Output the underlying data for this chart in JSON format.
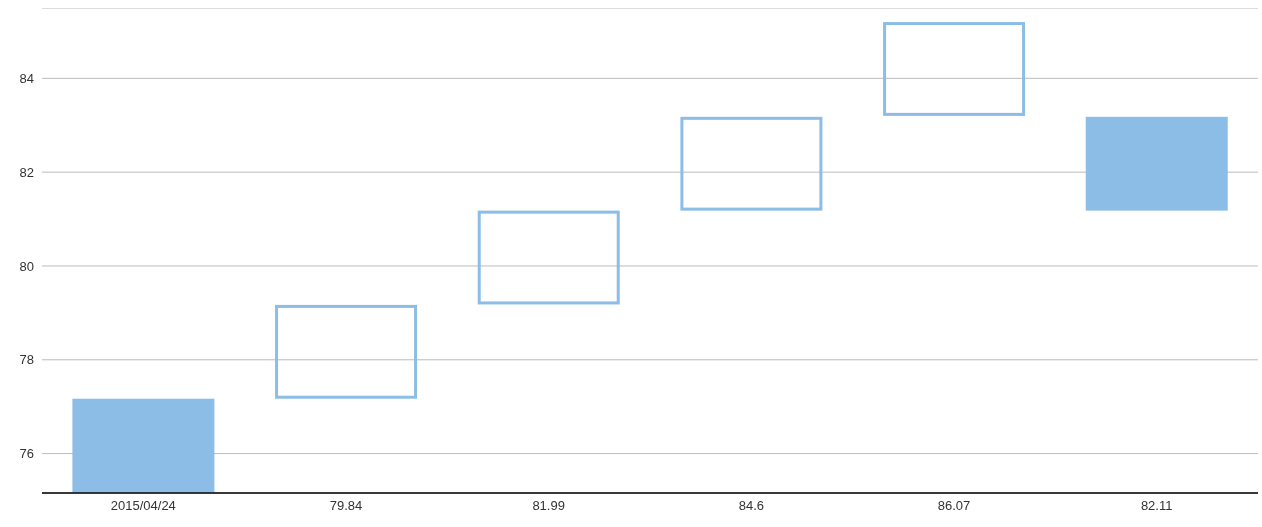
{
  "chart_data": {
    "type": "bar",
    "categories": [
      "2015/04/24",
      "79.84",
      "81.99",
      "84.6",
      "86.07",
      "82.11"
    ],
    "series": [
      {
        "color": "#8bbde6",
        "base": [
          75.17,
          null,
          null,
          null,
          null,
          81.18
        ],
        "values": [
          2,
          null,
          null,
          null,
          null,
          2
        ]
      },
      {
        "color": "#8bbde6",
        "base": [
          null,
          77.17,
          79.18,
          81.18,
          83.2,
          null
        ],
        "values": [
          null,
          2,
          2,
          2,
          2,
          null
        ]
      }
    ],
    "ylim": [
      75.16,
      85.5
    ],
    "yticks": [
      76,
      78,
      80,
      82,
      84
    ],
    "grid": "y",
    "legend": false
  }
}
